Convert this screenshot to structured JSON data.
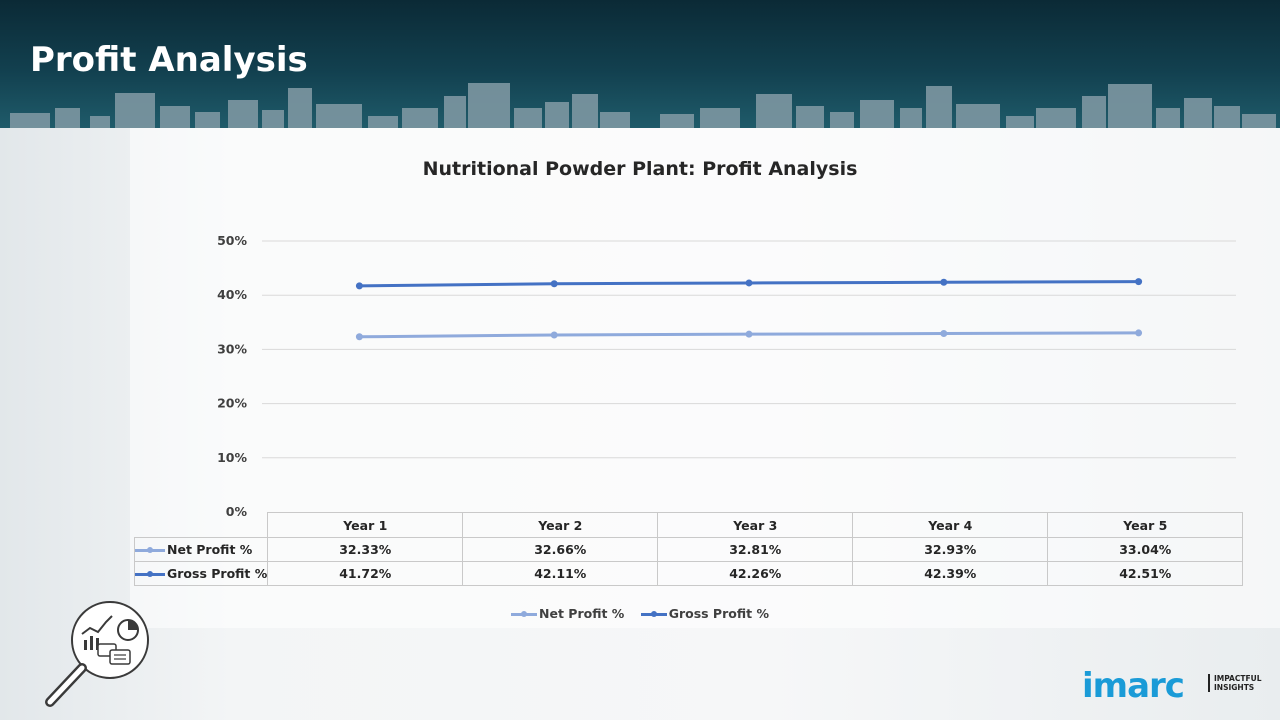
{
  "page": {
    "title": "Profit Analysis"
  },
  "chart_data": {
    "type": "line",
    "title": "Nutritional Powder Plant: Profit Analysis",
    "categories": [
      "Year 1",
      "Year 2",
      "Year 3",
      "Year 4",
      "Year 5"
    ],
    "series": [
      {
        "name": "Net Profit %",
        "values": [
          32.33,
          32.66,
          32.81,
          32.93,
          33.04
        ],
        "labels": [
          "32.33%",
          "32.66%",
          "32.81%",
          "32.93%",
          "33.04%"
        ],
        "color": "#8faadc"
      },
      {
        "name": "Gross Profit %",
        "values": [
          41.72,
          42.11,
          42.26,
          42.39,
          42.51
        ],
        "labels": [
          "41.72%",
          "42.11%",
          "42.26%",
          "42.39%",
          "42.51%"
        ],
        "color": "#4472c4"
      }
    ],
    "yticks": [
      "0%",
      "10%",
      "20%",
      "30%",
      "40%",
      "50%"
    ],
    "ylim": [
      0,
      50
    ],
    "grid": true,
    "legend": "bottom",
    "data_table": true
  },
  "branding": {
    "logo_text": "imarc",
    "logo_tagline": [
      "IMPACTFUL",
      "INSIGHTS"
    ],
    "logo_color": "#1a9bd7",
    "icon": "magnifier-analytics-icon"
  }
}
